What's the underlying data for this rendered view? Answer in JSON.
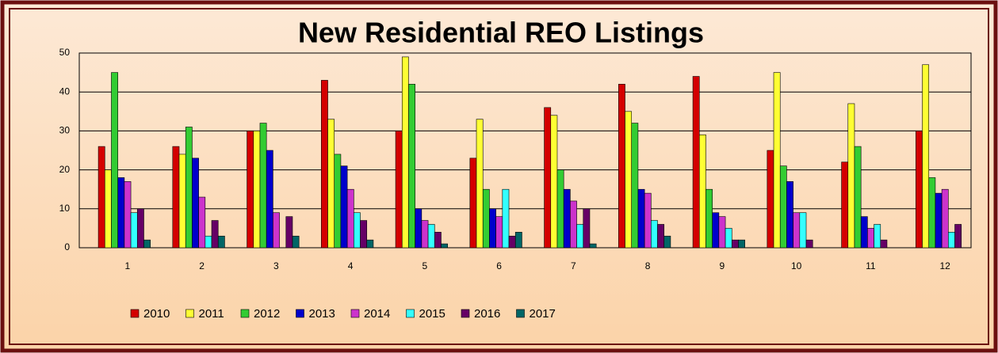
{
  "chart_data": {
    "type": "bar",
    "title": "New Residential REO Listings",
    "categories": [
      "1",
      "2",
      "3",
      "4",
      "5",
      "6",
      "7",
      "8",
      "9",
      "10",
      "11",
      "12"
    ],
    "series": [
      {
        "name": "2010",
        "color": "#d40000",
        "values": [
          26,
          26,
          30,
          43,
          30,
          23,
          36,
          42,
          44,
          25,
          22,
          30
        ]
      },
      {
        "name": "2011",
        "color": "#ffff33",
        "values": [
          20,
          24,
          30,
          33,
          49,
          33,
          34,
          35,
          29,
          45,
          37,
          47
        ]
      },
      {
        "name": "2012",
        "color": "#33cc33",
        "values": [
          45,
          31,
          32,
          24,
          42,
          15,
          20,
          32,
          15,
          21,
          26,
          18
        ]
      },
      {
        "name": "2013",
        "color": "#0000cc",
        "values": [
          18,
          23,
          25,
          21,
          10,
          10,
          15,
          15,
          9,
          17,
          8,
          14
        ]
      },
      {
        "name": "2014",
        "color": "#cc33cc",
        "values": [
          17,
          13,
          9,
          15,
          7,
          8,
          12,
          14,
          8,
          9,
          5,
          15
        ]
      },
      {
        "name": "2015",
        "color": "#33ffff",
        "values": [
          9,
          3,
          0,
          9,
          6,
          15,
          6,
          7,
          5,
          9,
          6,
          4
        ]
      },
      {
        "name": "2016",
        "color": "#660066",
        "values": [
          10,
          7,
          8,
          7,
          4,
          3,
          10,
          6,
          2,
          2,
          2,
          6
        ]
      },
      {
        "name": "2017",
        "color": "#006666",
        "values": [
          2,
          3,
          3,
          2,
          1,
          4,
          1,
          3,
          2,
          0,
          0,
          0
        ]
      }
    ],
    "ylim": [
      0,
      50
    ],
    "yticks": [
      0,
      10,
      20,
      30,
      40,
      50
    ],
    "grid": true
  }
}
